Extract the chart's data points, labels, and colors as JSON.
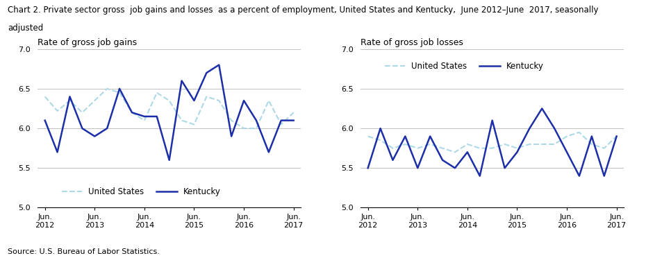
{
  "title_line1": "Chart 2. Private sector gross  job gains and losses  as a percent of employment, United States and Kentucky,  June 2012–June  2017, seasonally",
  "title_line2": "adjusted",
  "left_title": "Rate of gross job gains",
  "right_title": "Rate of gross job losses",
  "source": "Source: U.S. Bureau of Labor Statistics.",
  "x_labels": [
    "Jun.\n2012",
    "Jun.\n2013",
    "Jun.\n2014",
    "Jun.\n2015",
    "Jun.\n2016",
    "Jun.\n2017"
  ],
  "x_tick_pos": [
    0,
    2,
    4,
    6,
    8,
    10
  ],
  "ylim": [
    5.0,
    7.0
  ],
  "yticks": [
    5.0,
    5.5,
    6.0,
    6.5,
    7.0
  ],
  "gains_us": [
    6.4,
    6.22,
    6.35,
    6.2,
    6.35,
    6.5,
    6.45,
    6.2,
    6.1,
    6.45,
    6.35,
    6.1,
    6.05,
    6.4,
    6.35,
    6.1,
    6.0,
    6.0,
    6.35,
    6.05,
    6.2
  ],
  "gains_ky": [
    6.1,
    5.7,
    6.4,
    6.0,
    5.9,
    6.0,
    6.5,
    6.2,
    6.15,
    6.15,
    5.6,
    6.6,
    6.35,
    6.7,
    6.8,
    5.9,
    6.35,
    6.1,
    5.7,
    6.1,
    6.1
  ],
  "losses_us": [
    5.9,
    5.85,
    5.75,
    5.8,
    5.75,
    5.8,
    5.75,
    5.7,
    5.8,
    5.75,
    5.75,
    5.8,
    5.75,
    5.8,
    5.8,
    5.8,
    5.9,
    5.95,
    5.8,
    5.75,
    5.9
  ],
  "losses_ky": [
    5.5,
    6.0,
    5.6,
    5.9,
    5.5,
    5.9,
    5.6,
    5.5,
    5.7,
    5.4,
    6.1,
    5.5,
    5.7,
    6.0,
    6.25,
    6.0,
    5.7,
    5.4,
    5.9,
    5.4,
    5.9
  ],
  "us_color": "#ADD8E6",
  "ky_color": "#1C2EA8",
  "grid_color": "#C0C0C0",
  "bg_color": "white",
  "title_fontsize": 8.5,
  "subtitle_fontsize": 9.0,
  "tick_fontsize": 8.0,
  "legend_fontsize": 8.5,
  "source_fontsize": 8.0
}
